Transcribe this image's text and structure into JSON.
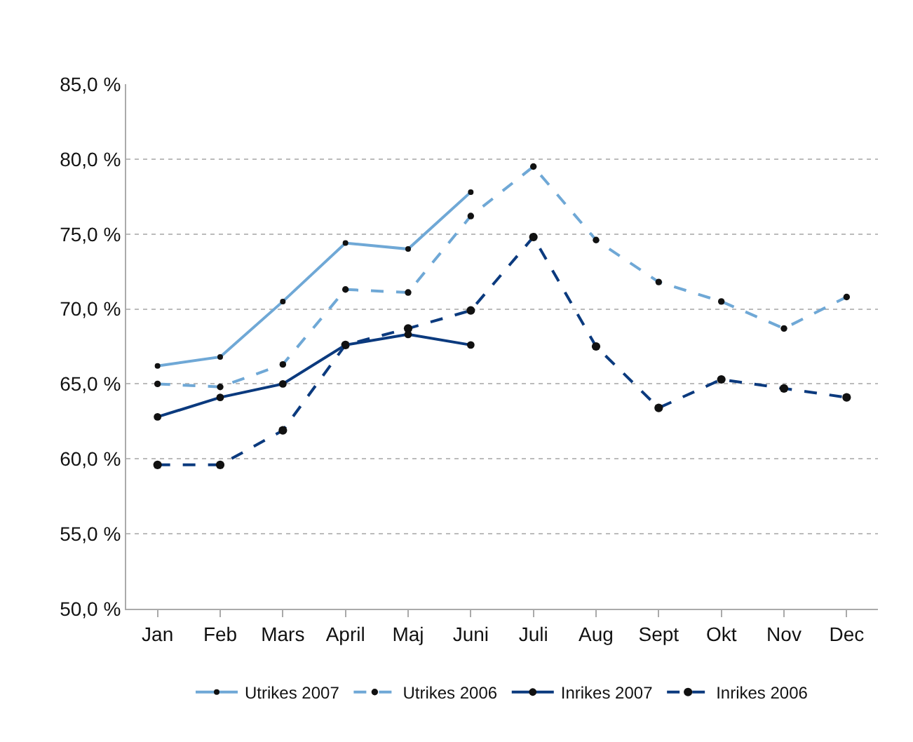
{
  "chart_data": {
    "type": "line",
    "categories": [
      "Jan",
      "Feb",
      "Mars",
      "April",
      "Maj",
      "Juni",
      "Juli",
      "Aug",
      "Sept",
      "Okt",
      "Nov",
      "Dec"
    ],
    "series": [
      {
        "name": "Utrikes 2007",
        "color": "#6fa8d6",
        "line_style": "solid",
        "values": [
          66.2,
          66.8,
          70.5,
          74.4,
          74.0,
          77.8,
          null,
          null,
          null,
          null,
          null,
          null
        ]
      },
      {
        "name": "Utrikes 2006",
        "color": "#6fa8d6",
        "line_style": "dashed",
        "values": [
          65.0,
          64.8,
          66.3,
          71.3,
          71.1,
          76.2,
          79.5,
          74.6,
          71.8,
          70.5,
          68.7,
          70.8
        ]
      },
      {
        "name": "Inrikes 2007",
        "color": "#0b3a7e",
        "line_style": "solid",
        "values": [
          62.8,
          64.1,
          65.0,
          67.6,
          68.3,
          67.6,
          null,
          null,
          null,
          null,
          null,
          null
        ]
      },
      {
        "name": "Inrikes 2006",
        "color": "#0b3a7e",
        "line_style": "dashed",
        "values": [
          59.6,
          59.6,
          61.9,
          67.6,
          68.7,
          69.9,
          74.8,
          67.5,
          63.4,
          65.3,
          64.7,
          64.1
        ]
      }
    ],
    "ylim": [
      50,
      85
    ],
    "yticks": [
      {
        "value": 50,
        "label": "50,0 %"
      },
      {
        "value": 55,
        "label": "55,0 %"
      },
      {
        "value": 60,
        "label": "60,0 %"
      },
      {
        "value": 65,
        "label": "65,0 %"
      },
      {
        "value": 70,
        "label": "70,0 %"
      },
      {
        "value": 75,
        "label": "75,0 %"
      },
      {
        "value": 80,
        "label": "80,0 %"
      },
      {
        "value": 85,
        "label": "85,0 %"
      }
    ],
    "grid": "y",
    "legend": "bottom",
    "marker": "circle"
  }
}
